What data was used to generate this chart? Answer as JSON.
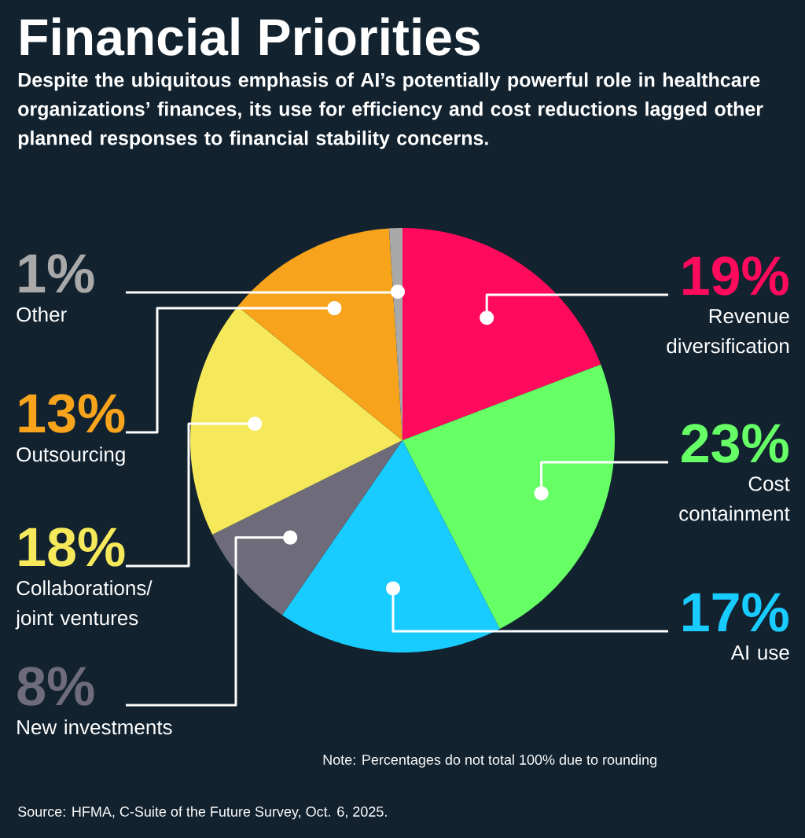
{
  "chart_data": {
    "type": "pie",
    "title": "Financial Priorities",
    "subtitle": "Despite the ubiquitous emphasis of AI’s potentially powerful role in healthcare organizations’ finances, its use for efficiency and cost reductions lagged other planned responses to financial stability concerns.",
    "categories": [
      "Revenue diversification",
      "Cost containment",
      "AI use",
      "New investments",
      "Collaborations/ joint ventures",
      "Outsourcing",
      "Other"
    ],
    "values": [
      19,
      23,
      17,
      8,
      18,
      13,
      1
    ],
    "colors": [
      "#ff0a5c",
      "#66ff66",
      "#19ccff",
      "#6e6c7a",
      "#f5e85a",
      "#f7a41c",
      "#a9a9a9"
    ],
    "value_labels": [
      "19%",
      "23%",
      "17%",
      "8%",
      "18%",
      "13%",
      "1%"
    ],
    "annotations": [
      "Note: Percentages do not total 100% due to rounding",
      "Source: HFMA, C-Suite of the Future Survey, Oct. 6, 2025."
    ]
  }
}
